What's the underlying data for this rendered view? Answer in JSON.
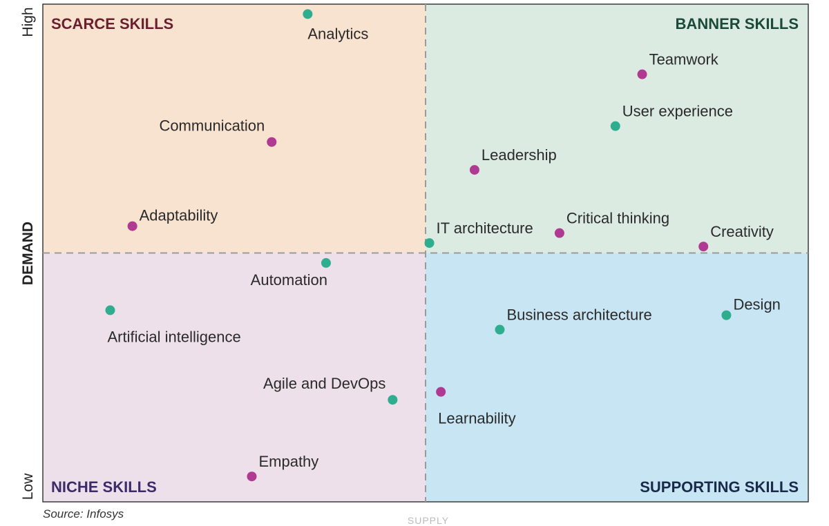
{
  "chart_data": {
    "type": "scatter",
    "title": "",
    "xlabel": "SUPPLY",
    "ylabel": "DEMAND",
    "y_high_label": "High",
    "y_low_label": "Low",
    "xlim": [
      0,
      100
    ],
    "ylim": [
      0,
      100
    ],
    "quadrants": {
      "top_left": {
        "title": "SCARCE SKILLS",
        "fill": "#f8e2d0",
        "title_color": "#6b1f2e"
      },
      "top_right": {
        "title": "BANNER SKILLS",
        "fill": "#dcebe2",
        "title_color": "#1c4a3a"
      },
      "bottom_left": {
        "title": "NICHE SKILLS",
        "fill": "#ede0ea",
        "title_color": "#3e2a6a"
      },
      "bottom_right": {
        "title": "SUPPORTING SKILLS",
        "fill": "#c8e5f4",
        "title_color": "#1a2a4a"
      }
    },
    "marker_colors": {
      "teal": "#2fae8f",
      "magenta": "#b03a92"
    },
    "points": [
      {
        "label": "Analytics",
        "x": 34.6,
        "y": 98.0,
        "color": "teal",
        "label_pos": "below"
      },
      {
        "label": "Communication",
        "x": 29.9,
        "y": 72.3,
        "color": "magenta",
        "label_pos": "above-left"
      },
      {
        "label": "Adaptability",
        "x": 11.7,
        "y": 55.4,
        "color": "magenta",
        "label_pos": "right"
      },
      {
        "label": "Teamwork",
        "x": 78.3,
        "y": 85.9,
        "color": "magenta",
        "label_pos": "above-right"
      },
      {
        "label": "User experience",
        "x": 74.8,
        "y": 75.5,
        "color": "teal",
        "label_pos": "above-right"
      },
      {
        "label": "Leadership",
        "x": 56.4,
        "y": 66.7,
        "color": "magenta",
        "label_pos": "above-right"
      },
      {
        "label": "IT architecture",
        "x": 50.5,
        "y": 52.0,
        "color": "teal",
        "label_pos": "above-right"
      },
      {
        "label": "Critical thinking",
        "x": 67.5,
        "y": 54.0,
        "color": "magenta",
        "label_pos": "above-right"
      },
      {
        "label": "Creativity",
        "x": 86.3,
        "y": 51.3,
        "color": "magenta",
        "label_pos": "above-right"
      },
      {
        "label": "Automation",
        "x": 37.0,
        "y": 48.0,
        "color": "teal",
        "label_pos": "below-left"
      },
      {
        "label": "Artificial intelligence",
        "x": 8.8,
        "y": 38.5,
        "color": "teal",
        "label_pos": "below-right"
      },
      {
        "label": "Design",
        "x": 89.3,
        "y": 37.5,
        "color": "teal",
        "label_pos": "right"
      },
      {
        "label": "Business architecture",
        "x": 59.7,
        "y": 34.6,
        "color": "teal",
        "label_pos": "above-right"
      },
      {
        "label": "Agile and DevOps",
        "x": 45.7,
        "y": 20.5,
        "color": "teal",
        "label_pos": "above-left"
      },
      {
        "label": "Learnability",
        "x": 52.0,
        "y": 22.1,
        "color": "magenta",
        "label_pos": "below-right"
      },
      {
        "label": "Empathy",
        "x": 27.3,
        "y": 5.1,
        "color": "magenta",
        "label_pos": "above-right"
      }
    ],
    "divider_x": 50,
    "divider_y": 50,
    "grid": false
  },
  "source": "Source: Infosys"
}
